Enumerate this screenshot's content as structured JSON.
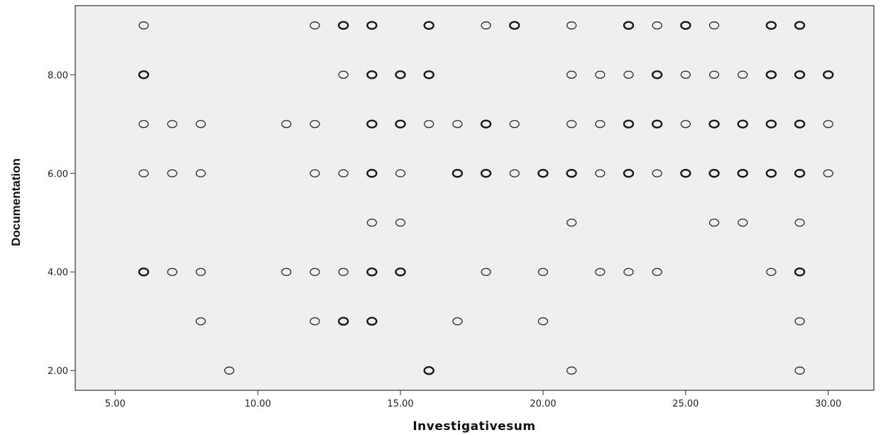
{
  "chart_data": {
    "type": "scatter",
    "title": "",
    "xlabel": "Investigativesum",
    "ylabel": "Documentation",
    "xlim": [
      3.6,
      31.6
    ],
    "ylim": [
      1.6,
      9.4
    ],
    "xticks": [
      5,
      10,
      15,
      20,
      25,
      30
    ],
    "yticks": [
      2,
      4,
      6,
      8
    ],
    "xtick_labels": [
      "5.00",
      "10.00",
      "15.00",
      "20.00",
      "25.00",
      "30.00"
    ],
    "ytick_labels": [
      "2.00",
      "4.00",
      "6.00",
      "8.00"
    ],
    "grid": false,
    "background": "#efefef",
    "marker_color": "#2b2b2b",
    "series": [
      {
        "points": [
          {
            "x": 6,
            "y": 9
          },
          {
            "x": 12,
            "y": 9
          },
          {
            "x": 13,
            "y": 9,
            "dup": true
          },
          {
            "x": 14,
            "y": 9,
            "dup": true
          },
          {
            "x": 16,
            "y": 9,
            "dup": true
          },
          {
            "x": 18,
            "y": 9
          },
          {
            "x": 19,
            "y": 9,
            "dup": true
          },
          {
            "x": 21,
            "y": 9
          },
          {
            "x": 23,
            "y": 9,
            "dup": true
          },
          {
            "x": 24,
            "y": 9
          },
          {
            "x": 25,
            "y": 9,
            "dup": true
          },
          {
            "x": 26,
            "y": 9
          },
          {
            "x": 28,
            "y": 9,
            "dup": true
          },
          {
            "x": 29,
            "y": 9,
            "dup": true
          },
          {
            "x": 6,
            "y": 8,
            "dup": true
          },
          {
            "x": 13,
            "y": 8
          },
          {
            "x": 14,
            "y": 8,
            "dup": true
          },
          {
            "x": 15,
            "y": 8,
            "dup": true
          },
          {
            "x": 16,
            "y": 8,
            "dup": true
          },
          {
            "x": 21,
            "y": 8
          },
          {
            "x": 22,
            "y": 8
          },
          {
            "x": 23,
            "y": 8
          },
          {
            "x": 24,
            "y": 8,
            "dup": true
          },
          {
            "x": 25,
            "y": 8
          },
          {
            "x": 26,
            "y": 8
          },
          {
            "x": 27,
            "y": 8
          },
          {
            "x": 28,
            "y": 8,
            "dup": true
          },
          {
            "x": 29,
            "y": 8,
            "dup": true
          },
          {
            "x": 30,
            "y": 8,
            "dup": true
          },
          {
            "x": 6,
            "y": 7
          },
          {
            "x": 7,
            "y": 7
          },
          {
            "x": 8,
            "y": 7
          },
          {
            "x": 11,
            "y": 7
          },
          {
            "x": 12,
            "y": 7
          },
          {
            "x": 14,
            "y": 7,
            "dup": true
          },
          {
            "x": 15,
            "y": 7,
            "dup": true
          },
          {
            "x": 16,
            "y": 7
          },
          {
            "x": 17,
            "y": 7
          },
          {
            "x": 18,
            "y": 7,
            "dup": true
          },
          {
            "x": 19,
            "y": 7
          },
          {
            "x": 21,
            "y": 7
          },
          {
            "x": 22,
            "y": 7
          },
          {
            "x": 23,
            "y": 7,
            "dup": true
          },
          {
            "x": 24,
            "y": 7,
            "dup": true
          },
          {
            "x": 25,
            "y": 7
          },
          {
            "x": 26,
            "y": 7,
            "dup": true
          },
          {
            "x": 27,
            "y": 7,
            "dup": true
          },
          {
            "x": 28,
            "y": 7,
            "dup": true
          },
          {
            "x": 29,
            "y": 7,
            "dup": true
          },
          {
            "x": 30,
            "y": 7
          },
          {
            "x": 6,
            "y": 6
          },
          {
            "x": 7,
            "y": 6
          },
          {
            "x": 8,
            "y": 6
          },
          {
            "x": 12,
            "y": 6
          },
          {
            "x": 13,
            "y": 6
          },
          {
            "x": 14,
            "y": 6,
            "dup": true
          },
          {
            "x": 15,
            "y": 6
          },
          {
            "x": 17,
            "y": 6,
            "dup": true
          },
          {
            "x": 18,
            "y": 6,
            "dup": true
          },
          {
            "x": 19,
            "y": 6
          },
          {
            "x": 20,
            "y": 6,
            "dup": true
          },
          {
            "x": 21,
            "y": 6,
            "dup": true
          },
          {
            "x": 22,
            "y": 6
          },
          {
            "x": 23,
            "y": 6,
            "dup": true
          },
          {
            "x": 24,
            "y": 6
          },
          {
            "x": 25,
            "y": 6,
            "dup": true
          },
          {
            "x": 26,
            "y": 6,
            "dup": true
          },
          {
            "x": 27,
            "y": 6,
            "dup": true
          },
          {
            "x": 28,
            "y": 6,
            "dup": true
          },
          {
            "x": 29,
            "y": 6,
            "dup": true
          },
          {
            "x": 30,
            "y": 6
          },
          {
            "x": 14,
            "y": 5
          },
          {
            "x": 15,
            "y": 5
          },
          {
            "x": 21,
            "y": 5
          },
          {
            "x": 26,
            "y": 5
          },
          {
            "x": 27,
            "y": 5
          },
          {
            "x": 29,
            "y": 5
          },
          {
            "x": 6,
            "y": 4,
            "dup": true
          },
          {
            "x": 7,
            "y": 4
          },
          {
            "x": 8,
            "y": 4
          },
          {
            "x": 11,
            "y": 4
          },
          {
            "x": 12,
            "y": 4
          },
          {
            "x": 13,
            "y": 4
          },
          {
            "x": 14,
            "y": 4,
            "dup": true
          },
          {
            "x": 15,
            "y": 4,
            "dup": true
          },
          {
            "x": 18,
            "y": 4
          },
          {
            "x": 20,
            "y": 4
          },
          {
            "x": 22,
            "y": 4
          },
          {
            "x": 23,
            "y": 4
          },
          {
            "x": 24,
            "y": 4
          },
          {
            "x": 28,
            "y": 4
          },
          {
            "x": 29,
            "y": 4,
            "dup": true
          },
          {
            "x": 8,
            "y": 3
          },
          {
            "x": 12,
            "y": 3
          },
          {
            "x": 13,
            "y": 3,
            "dup": true
          },
          {
            "x": 14,
            "y": 3,
            "dup": true
          },
          {
            "x": 17,
            "y": 3
          },
          {
            "x": 20,
            "y": 3
          },
          {
            "x": 29,
            "y": 3
          },
          {
            "x": 9,
            "y": 2
          },
          {
            "x": 16,
            "y": 2,
            "dup": true
          },
          {
            "x": 21,
            "y": 2
          },
          {
            "x": 29,
            "y": 2
          }
        ]
      }
    ]
  }
}
